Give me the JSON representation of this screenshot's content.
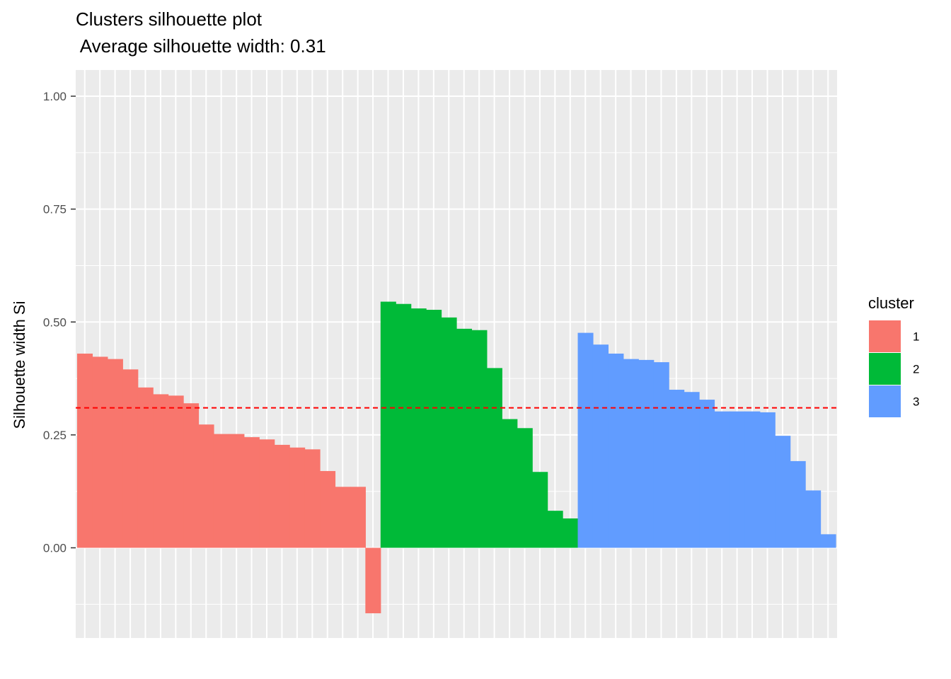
{
  "chart_data": {
    "type": "bar",
    "title": "Clusters silhouette plot",
    "subtitle": " Average silhouette width: 0.31",
    "xlabel": "",
    "ylabel": "Silhouette width Si",
    "ylim": [
      -0.2,
      1.05
    ],
    "yticks": [
      "0.00",
      "0.25",
      "0.50",
      "0.75",
      "1.00"
    ],
    "ytick_values": [
      0,
      0.25,
      0.5,
      0.75,
      1.0
    ],
    "grid": true,
    "reference_line": {
      "value": 0.31,
      "style": "dashed",
      "color": "#ff0000"
    },
    "legend": {
      "title": "cluster",
      "placement": "right"
    },
    "series": [
      {
        "name": "1",
        "color": "#F8766D",
        "values": [
          0.43,
          0.423,
          0.418,
          0.395,
          0.355,
          0.34,
          0.337,
          0.32,
          0.273,
          0.252,
          0.252,
          0.245,
          0.24,
          0.228,
          0.222,
          0.218,
          0.17,
          0.135,
          0.135,
          -0.145
        ]
      },
      {
        "name": "2",
        "color": "#00BA38",
        "values": [
          0.545,
          0.54,
          0.53,
          0.527,
          0.51,
          0.485,
          0.482,
          0.398,
          0.285,
          0.265,
          0.168,
          0.082,
          0.065
        ]
      },
      {
        "name": "3",
        "color": "#619CFF",
        "values": [
          0.476,
          0.45,
          0.43,
          0.418,
          0.416,
          0.411,
          0.35,
          0.345,
          0.328,
          0.302,
          0.302,
          0.302,
          0.3,
          0.248,
          0.192,
          0.127,
          0.03
        ]
      }
    ]
  }
}
